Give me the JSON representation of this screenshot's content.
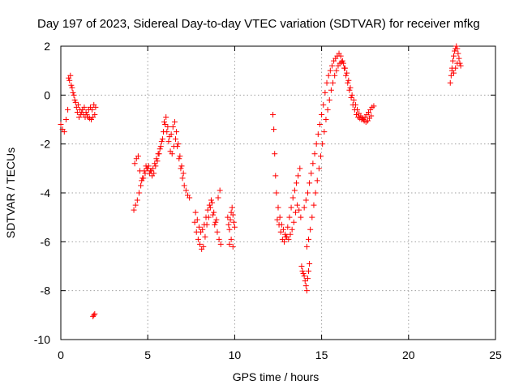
{
  "chart_data": {
    "type": "scatter",
    "title": "Day 197 of 2023, Sidereal Day-to-day VTEC variation (SDTVAR) for receiver mfkg",
    "xlabel": "GPS time / hours",
    "ylabel": "SDTVAR / TECUs",
    "xlim": [
      0,
      25
    ],
    "ylim": [
      -10,
      2
    ],
    "xticks": [
      "0",
      "5",
      "10",
      "15",
      "20",
      "25"
    ],
    "yticks": [
      "2",
      "0",
      "-2",
      "-4",
      "-6",
      "-8",
      "-10"
    ],
    "grid": true,
    "marker": "+",
    "color": "#ff0000",
    "series": [
      {
        "name": "SDTVAR",
        "x": [
          0.0,
          0.1,
          0.2,
          0.3,
          0.4,
          0.5,
          0.6,
          0.7,
          0.8,
          0.9,
          1.0,
          1.1,
          1.2,
          1.3,
          1.4,
          1.5,
          1.6,
          1.7,
          1.8,
          1.9,
          2.0,
          0.45,
          0.55,
          0.65,
          0.75,
          0.85,
          0.95,
          1.05,
          1.15,
          1.25,
          1.35,
          1.45,
          1.55,
          1.65,
          1.75,
          1.85,
          1.95,
          1.85,
          1.9,
          1.95,
          4.2,
          4.3,
          4.4,
          4.5,
          4.6,
          4.7,
          4.8,
          4.9,
          5.0,
          5.1,
          5.2,
          5.3,
          5.4,
          5.5,
          5.6,
          5.7,
          5.8,
          5.9,
          6.0,
          6.1,
          6.2,
          6.3,
          6.4,
          6.5,
          6.6,
          6.7,
          6.8,
          6.9,
          7.0,
          7.1,
          7.2,
          7.3,
          7.4,
          4.25,
          4.35,
          4.45,
          4.55,
          4.65,
          4.75,
          4.85,
          4.95,
          5.05,
          5.15,
          5.25,
          5.35,
          5.45,
          5.55,
          5.65,
          5.75,
          5.85,
          5.95,
          6.05,
          6.15,
          6.25,
          6.35,
          6.45,
          6.55,
          6.65,
          6.75,
          6.85,
          6.95,
          7.05,
          7.7,
          7.8,
          7.9,
          8.0,
          8.1,
          8.2,
          8.3,
          8.4,
          8.5,
          8.6,
          8.7,
          8.8,
          8.9,
          9.0,
          9.1,
          9.2,
          7.75,
          7.85,
          7.95,
          8.05,
          8.15,
          8.25,
          8.35,
          8.45,
          8.55,
          8.65,
          8.75,
          8.85,
          8.95,
          9.05,
          9.15,
          9.6,
          9.65,
          9.7,
          9.75,
          9.8,
          9.85,
          9.9,
          9.95,
          10.0,
          9.7,
          9.8,
          9.9,
          12.2,
          12.25,
          12.3,
          12.35,
          12.4,
          12.5,
          12.6,
          12.7,
          12.8,
          12.9,
          13.0,
          13.1,
          13.2,
          13.3,
          13.4,
          13.5,
          13.6,
          13.7,
          13.8,
          12.45,
          12.55,
          12.65,
          12.75,
          12.85,
          12.95,
          13.05,
          13.15,
          13.25,
          13.35,
          13.45,
          13.55,
          13.65,
          13.75,
          13.85,
          13.9,
          13.95,
          14.0,
          14.05,
          14.1,
          14.15,
          14.2,
          14.25,
          14.3,
          14.0,
          14.1,
          14.2,
          14.3,
          14.4,
          14.5,
          14.6,
          14.7,
          14.8,
          14.9,
          15.0,
          15.1,
          15.2,
          15.3,
          15.4,
          15.5,
          15.6,
          15.7,
          15.8,
          15.9,
          16.0,
          16.1,
          16.2,
          16.3,
          16.4,
          16.5,
          16.6,
          16.7,
          16.8,
          16.9,
          17.0,
          17.1,
          17.2,
          17.3,
          17.4,
          17.5,
          17.6,
          17.7,
          17.8,
          17.9,
          18.0,
          14.15,
          14.25,
          14.35,
          14.45,
          14.55,
          14.65,
          14.75,
          14.85,
          14.95,
          15.05,
          15.15,
          15.25,
          15.35,
          15.45,
          15.55,
          15.65,
          15.75,
          15.85,
          15.95,
          16.05,
          16.15,
          16.25,
          16.35,
          16.45,
          16.55,
          16.65,
          16.75,
          16.85,
          16.95,
          17.05,
          17.15,
          17.25,
          17.35,
          17.45,
          17.55,
          17.65,
          17.75,
          17.85,
          22.4,
          22.45,
          22.5,
          22.55,
          22.6,
          22.65,
          22.7,
          22.75,
          22.8,
          22.85,
          22.9,
          22.95,
          23.0,
          22.5,
          22.6,
          22.7,
          22.8
        ],
        "y": [
          -1.2,
          -1.4,
          -1.5,
          -1.0,
          -0.6,
          0.6,
          0.4,
          0.1,
          -0.2,
          -0.5,
          -0.4,
          -0.6,
          -0.7,
          -0.8,
          -0.9,
          -0.8,
          -0.6,
          -0.5,
          -0.6,
          -0.4,
          -0.5,
          0.7,
          0.8,
          0.3,
          0.0,
          -0.3,
          -0.7,
          -0.9,
          -0.8,
          -0.6,
          -0.5,
          -0.7,
          -0.9,
          -0.95,
          -1.0,
          -0.9,
          -0.8,
          -9.05,
          -9.0,
          -8.95,
          -4.7,
          -4.5,
          -4.3,
          -4.0,
          -3.7,
          -3.4,
          -3.1,
          -2.9,
          -3.0,
          -3.2,
          -3.1,
          -3.0,
          -2.8,
          -2.6,
          -2.4,
          -2.2,
          -1.9,
          -1.5,
          -1.2,
          -1.5,
          -1.9,
          -2.3,
          -2.4,
          -2.1,
          -1.8,
          -2.1,
          -2.6,
          -3.0,
          -3.4,
          -3.7,
          -3.9,
          -4.1,
          -4.2,
          -2.8,
          -2.6,
          -2.5,
          -3.1,
          -3.5,
          -3.4,
          -3.2,
          -3.0,
          -2.9,
          -3.1,
          -3.3,
          -3.2,
          -2.9,
          -2.7,
          -2.4,
          -2.1,
          -1.8,
          -1.1,
          -0.9,
          -1.3,
          -1.7,
          -1.6,
          -1.3,
          -1.1,
          -1.5,
          -2.0,
          -2.5,
          -2.9,
          -3.2,
          -5.2,
          -5.6,
          -5.9,
          -6.1,
          -6.3,
          -6.2,
          -5.8,
          -5.3,
          -5.0,
          -4.6,
          -4.4,
          -4.8,
          -5.2,
          -5.6,
          -5.9,
          -6.1,
          -4.8,
          -5.1,
          -5.4,
          -5.6,
          -5.5,
          -5.3,
          -5.0,
          -4.7,
          -4.5,
          -4.3,
          -4.9,
          -5.3,
          -5.1,
          -4.2,
          -3.9,
          -5.0,
          -5.3,
          -5.5,
          -5.1,
          -4.8,
          -4.6,
          -4.9,
          -5.2,
          -5.4,
          -6.1,
          -5.9,
          -6.2,
          -0.8,
          -1.4,
          -2.4,
          -3.3,
          -4.0,
          -4.6,
          -5.0,
          -5.3,
          -5.5,
          -5.7,
          -5.8,
          -5.9,
          -5.7,
          -5.5,
          -5.2,
          -4.8,
          -4.5,
          -4.7,
          -5.0,
          -5.1,
          -5.3,
          -5.6,
          -5.9,
          -6.0,
          -5.8,
          -5.4,
          -5.0,
          -4.6,
          -4.2,
          -3.9,
          -3.6,
          -3.3,
          -3.0,
          -7.0,
          -7.2,
          -7.3,
          -7.4,
          -7.6,
          -7.8,
          -8.0,
          -7.5,
          -7.2,
          -6.9,
          -4.6,
          -4.3,
          -4.0,
          -3.6,
          -3.2,
          -2.8,
          -2.4,
          -2.0,
          -1.6,
          -1.2,
          -0.8,
          -0.4,
          0.1,
          0.5,
          0.8,
          1.0,
          1.2,
          1.4,
          1.5,
          1.6,
          1.7,
          1.6,
          1.4,
          1.1,
          0.8,
          0.5,
          0.2,
          -0.1,
          -0.4,
          -0.6,
          -0.8,
          -0.9,
          -0.95,
          -1.0,
          -1.0,
          -0.9,
          -0.8,
          -0.7,
          -0.6,
          -0.5,
          -0.45,
          -6.2,
          -5.9,
          -5.5,
          -5.0,
          -4.5,
          -4.0,
          -3.5,
          -3.0,
          -2.5,
          -2.0,
          -1.5,
          -1.0,
          -0.6,
          -0.2,
          0.2,
          0.5,
          0.8,
          1.0,
          1.2,
          1.3,
          1.35,
          1.3,
          1.1,
          0.9,
          0.6,
          0.3,
          0.0,
          -0.2,
          -0.4,
          -0.6,
          -0.75,
          -0.85,
          -0.95,
          -1.05,
          -1.1,
          -1.05,
          -0.95,
          -0.85,
          0.5,
          0.8,
          1.1,
          1.4,
          1.6,
          1.8,
          1.9,
          2.0,
          1.9,
          1.7,
          1.5,
          1.3,
          1.2,
          1.0,
          0.9,
          1.1,
          1.3
        ]
      }
    ]
  }
}
